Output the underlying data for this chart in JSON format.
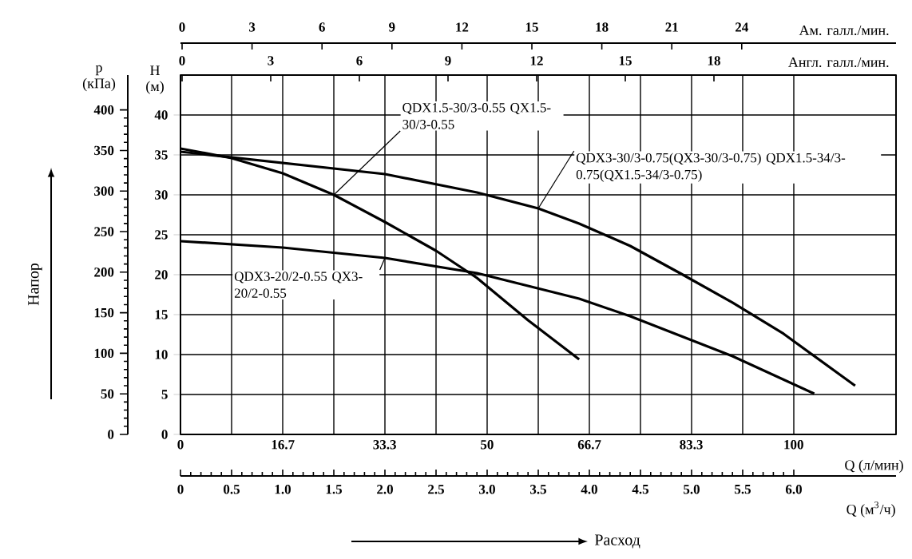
{
  "chart_data": {
    "type": "line",
    "xlabel": "Q (м$^{3}$/ч)",
    "x2label": "Q (л/мин)",
    "ylabel": "H (м)",
    "y2label": "p (кПа)",
    "xlim": [
      0,
      7
    ],
    "xticks": [
      0,
      0.5,
      {
        "value": 1,
        "label": "1.0"
      },
      1.5,
      {
        "value": 2,
        "label": "2.0"
      },
      2.5,
      {
        "value": 3,
        "label": "3.0"
      },
      3.5,
      {
        "value": 4,
        "label": "4.0"
      },
      4.5,
      {
        "value": 5,
        "label": "5.0"
      },
      5.5,
      {
        "value": 6,
        "label": "6.0"
      }
    ],
    "x2lim": [
      0,
      116.7
    ],
    "x2ticks": [
      0,
      16.7,
      33.3,
      50,
      66.7,
      83.3,
      100
    ],
    "ylim": [
      0,
      45
    ],
    "yticks": [
      0,
      5,
      10,
      15,
      20,
      25,
      30,
      35,
      40
    ],
    "y2lim": [
      0,
      443
    ],
    "y2ticks": [
      0,
      50,
      100,
      150,
      200,
      250,
      300,
      350,
      400
    ],
    "grid": true,
    "marker": "none",
    "line_style": "solid",
    "series": [
      {
        "name": "QDX1.5-30/3-0.55 QX1.5-30/3-0.55",
        "color": "#000000",
        "x": [
          0,
          0.5,
          1.0,
          1.5,
          2.0,
          2.5,
          2.9,
          3.4,
          3.9
        ],
        "values": [
          35.8,
          34.6,
          32.7,
          30.0,
          26.6,
          23.0,
          19.6,
          14.3,
          9.4
        ]
      },
      {
        "name": "QDX3-30/3-0.75(QX3-30/3-0.75) QDX1.5-34/3-0.75(QX1.5-34/3-0.75)",
        "color": "#000000",
        "x": [
          0,
          1,
          2,
          2.9,
          3.5,
          3.9,
          4.4,
          4.9,
          5.4,
          5.9,
          6.6
        ],
        "values": [
          35.4,
          34.0,
          32.6,
          30.3,
          28.3,
          26.4,
          23.6,
          20.1,
          16.5,
          12.6,
          6.1
        ]
      },
      {
        "name": "QDX3-20/2-0.55 QX3-20/2-0.55",
        "color": "#000000",
        "x": [
          0,
          1,
          2,
          2.9,
          3.9,
          4.4,
          5.4,
          6.2
        ],
        "values": [
          24.2,
          23.4,
          22.1,
          20.2,
          17.0,
          14.8,
          9.8,
          5.1
        ]
      }
    ],
    "annotations": [
      "Напор",
      "Расход",
      "Ам. галл./мин.",
      "0",
      "3",
      "6",
      "9",
      "12",
      "15",
      "18",
      "21",
      "24",
      "Англ. галл./мин.",
      "0",
      "3",
      "6",
      "9",
      "12",
      "15",
      "18"
    ]
  }
}
